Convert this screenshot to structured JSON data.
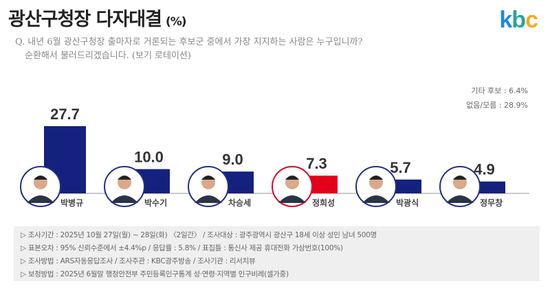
{
  "header": {
    "title": "광산구청장 다자대결",
    "title_unit": "(%)",
    "logo": "kbc",
    "question_line1": "Q. 내년 6월 광산구청장 출마자로 거론되는 후보군 중에서 가장 지지하는 사람은 누구입니까?",
    "question_line2": "순환해서 불러드리겠습니다. (보기 로테이션)"
  },
  "extras": {
    "other": "기타 후보 : 6.4%",
    "none": "없음/모름 : 28.9%"
  },
  "chart_data": {
    "type": "bar",
    "categories": [
      "박병규",
      "박수기",
      "차승세",
      "정희성",
      "박광식",
      "정무창"
    ],
    "values": [
      27.7,
      10.0,
      9.0,
      7.3,
      5.7,
      4.9
    ],
    "value_labels": [
      "27.7",
      "10.0",
      "9.0",
      "7.3",
      "5.7",
      "4.9"
    ],
    "highlight_index": 3,
    "colors": {
      "default": "#14217f",
      "highlight": "#e3001b",
      "ring_default": "#1f2d8a",
      "ring_highlight": "#e3001b"
    },
    "ylim": [
      0,
      30
    ],
    "grid": false
  },
  "notes": [
    "▷ 조사기간 : 2025년 10월 27일(월) ~ 28일(화) 〈2일간〉 / 조사대상 : 광주광역시 광산구 18세 이상 성인 남녀 500명",
    "▷ 표본오차 : 95% 신뢰수준에서 ±4.4%p / 응답률 : 5.8% / 표집틀 : 통신사 제공 휴대전화 가상번호(100%)",
    "▷ 조사방법 : ARS자동응답조사 / 조사주관 : KBC광주방송 / 조사기관 : 리서치뷰",
    "▷ 보정방법 : 2025년 6월말 행정안전부 주민등록인구통계 성·연령·지역별 인구비례(셀가중)"
  ]
}
